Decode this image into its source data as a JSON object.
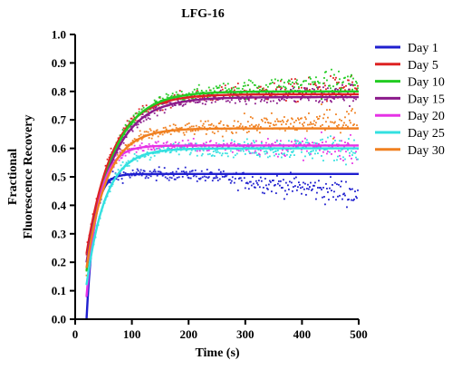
{
  "chart_data": {
    "type": "scatter",
    "title": "LFG-16",
    "xlabel": "Time (s)",
    "ylabel_lines": [
      "Fractional",
      "Fluorescence Recovery"
    ],
    "xlim": [
      0,
      500
    ],
    "ylim": [
      0.0,
      1.0
    ],
    "x_ticks": [
      0,
      100,
      200,
      300,
      400,
      500
    ],
    "x_tick_labels": [
      "0",
      "100",
      "200",
      "300",
      "400",
      "500"
    ],
    "y_ticks": [
      0.0,
      0.1,
      0.2,
      0.3,
      0.4,
      0.5,
      0.6,
      0.7,
      0.8,
      0.9,
      1.0
    ],
    "y_tick_labels": [
      "0.0",
      "0.1",
      "0.2",
      "0.3",
      "0.4",
      "0.5",
      "0.6",
      "0.7",
      "0.8",
      "0.9",
      "1.0"
    ],
    "grid": false,
    "legend_position": "right",
    "data_x_range": [
      20,
      500
    ],
    "series": [
      {
        "name": "Day 1",
        "color": "#1f1fcf",
        "t0": 20,
        "y0": 0.0,
        "plateau": 0.51,
        "rate": 0.075,
        "late_drift": -0.07,
        "noise": 0.035
      },
      {
        "name": "Day 5",
        "color": "#dd2222",
        "t0": 20,
        "y0": 0.23,
        "plateau": 0.79,
        "rate": 0.022,
        "late_drift": 0.02,
        "noise": 0.035
      },
      {
        "name": "Day 10",
        "color": "#22cc22",
        "t0": 20,
        "y0": 0.17,
        "plateau": 0.8,
        "rate": 0.022,
        "late_drift": 0.03,
        "noise": 0.035
      },
      {
        "name": "Day 15",
        "color": "#8b1a8b",
        "t0": 20,
        "y0": 0.2,
        "plateau": 0.78,
        "rate": 0.021,
        "late_drift": 0.01,
        "noise": 0.03
      },
      {
        "name": "Day 20",
        "color": "#e633e6",
        "t0": 20,
        "y0": 0.08,
        "plateau": 0.61,
        "rate": 0.045,
        "late_drift": -0.01,
        "noise": 0.03
      },
      {
        "name": "Day 25",
        "color": "#33e0e0",
        "t0": 20,
        "y0": 0.12,
        "plateau": 0.6,
        "rate": 0.03,
        "late_drift": 0.0,
        "noise": 0.035
      },
      {
        "name": "Day 30",
        "color": "#f08020",
        "t0": 20,
        "y0": 0.18,
        "plateau": 0.67,
        "rate": 0.028,
        "late_drift": 0.03,
        "noise": 0.035
      }
    ]
  }
}
